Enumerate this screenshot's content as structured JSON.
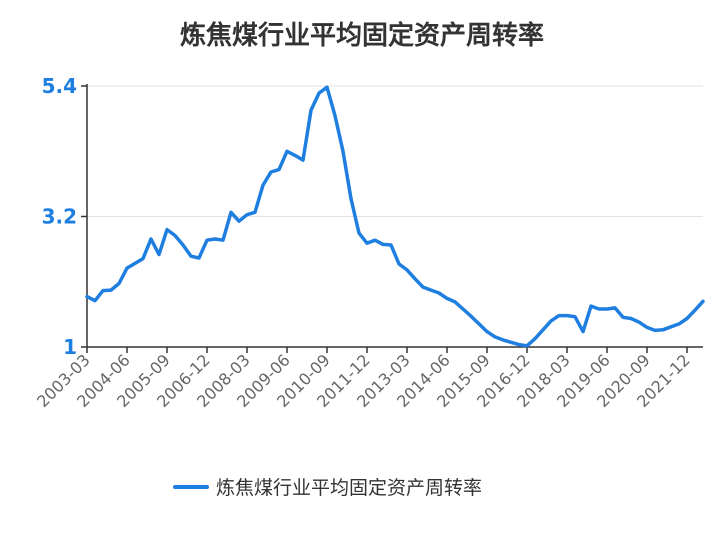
{
  "chart_data": {
    "type": "line",
    "title": "炼焦煤行业平均固定资产周转率",
    "xlabel": "",
    "ylabel": "",
    "ylim": [
      1,
      5.4
    ],
    "yticks": [
      "1",
      "3.2",
      "5.4"
    ],
    "ytick_values": [
      1,
      3.2,
      5.4
    ],
    "grid": true,
    "legend_position": "bottom",
    "line_color": "#1f7fe0",
    "x_tick_labels": [
      "2003-03",
      "2004-06",
      "2005-09",
      "2006-12",
      "2008-03",
      "2009-06",
      "2010-09",
      "2011-12",
      "2013-03",
      "2014-06",
      "2015-09",
      "2016-12",
      "2018-03",
      "2019-06",
      "2020-09",
      "2021-12"
    ],
    "series": [
      {
        "name": "炼焦煤行业平均固定资产周转率",
        "x": [
          "2003-03",
          "2003-06",
          "2003-09",
          "2003-12",
          "2004-03",
          "2004-06",
          "2004-09",
          "2004-12",
          "2005-03",
          "2005-06",
          "2005-09",
          "2005-12",
          "2006-03",
          "2006-06",
          "2006-09",
          "2006-12",
          "2007-03",
          "2007-06",
          "2007-09",
          "2007-12",
          "2008-03",
          "2008-06",
          "2008-09",
          "2008-12",
          "2009-03",
          "2009-06",
          "2009-09",
          "2009-12",
          "2010-03",
          "2010-06",
          "2010-09",
          "2010-12",
          "2011-03",
          "2011-06",
          "2011-09",
          "2011-12",
          "2012-03",
          "2012-06",
          "2012-09",
          "2012-12",
          "2013-03",
          "2013-06",
          "2013-09",
          "2013-12",
          "2014-03",
          "2014-06",
          "2014-09",
          "2014-12",
          "2015-03",
          "2015-06",
          "2015-09",
          "2015-12",
          "2016-03",
          "2016-06",
          "2016-09",
          "2016-12",
          "2017-03",
          "2017-06",
          "2017-09",
          "2017-12",
          "2018-03",
          "2018-06",
          "2018-09",
          "2018-12",
          "2019-03",
          "2019-06",
          "2019-09",
          "2019-12",
          "2020-03",
          "2020-06",
          "2020-09",
          "2020-12",
          "2021-03",
          "2021-06",
          "2021-09",
          "2021-12",
          "2022-03",
          "2022-06"
        ],
        "values": [
          1.85,
          1.78,
          1.95,
          1.96,
          2.07,
          2.33,
          2.41,
          2.49,
          2.82,
          2.56,
          2.98,
          2.88,
          2.72,
          2.53,
          2.5,
          2.8,
          2.82,
          2.8,
          3.27,
          3.12,
          3.23,
          3.27,
          3.73,
          3.95,
          3.99,
          4.3,
          4.23,
          4.15,
          4.99,
          5.28,
          5.38,
          4.9,
          4.3,
          3.5,
          2.92,
          2.75,
          2.8,
          2.73,
          2.72,
          2.4,
          2.3,
          2.15,
          2.01,
          1.96,
          1.91,
          1.82,
          1.76,
          1.64,
          1.52,
          1.39,
          1.26,
          1.17,
          1.12,
          1.08,
          1.04,
          1.02,
          1.14,
          1.29,
          1.44,
          1.53,
          1.53,
          1.51,
          1.26,
          1.69,
          1.64,
          1.64,
          1.66,
          1.5,
          1.48,
          1.42,
          1.33,
          1.28,
          1.29,
          1.34,
          1.39,
          1.48,
          1.62,
          1.77
        ]
      }
    ]
  }
}
